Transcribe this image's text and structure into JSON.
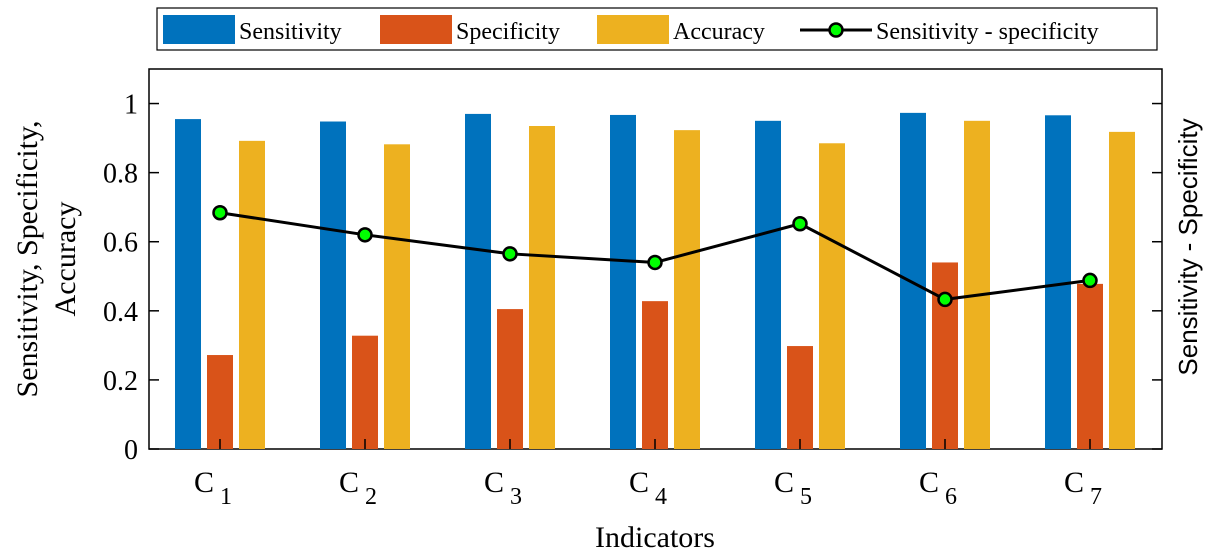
{
  "chart_data": {
    "type": "bar",
    "categories": [
      {
        "base": "C",
        "sub": "1"
      },
      {
        "base": "C",
        "sub": "2"
      },
      {
        "base": "C",
        "sub": "3"
      },
      {
        "base": "C",
        "sub": "4"
      },
      {
        "base": "C",
        "sub": "5"
      },
      {
        "base": "C",
        "sub": "6"
      },
      {
        "base": "C",
        "sub": "7"
      }
    ],
    "series": [
      {
        "name": "Sensitivity",
        "type": "bar",
        "color": "#0072BD",
        "values": [
          0.955,
          0.948,
          0.97,
          0.967,
          0.95,
          0.973,
          0.966
        ]
      },
      {
        "name": "Specificity",
        "type": "bar",
        "color": "#D95319",
        "values": [
          0.272,
          0.328,
          0.405,
          0.428,
          0.298,
          0.54,
          0.478
        ]
      },
      {
        "name": "Accuracy",
        "type": "bar",
        "color": "#EDB120",
        "values": [
          0.892,
          0.882,
          0.935,
          0.923,
          0.885,
          0.95,
          0.918
        ]
      },
      {
        "name": "Sensitivity - specificity",
        "type": "line",
        "color": "#000000",
        "marker_color": "#00FF00",
        "values": [
          0.684,
          0.62,
          0.565,
          0.54,
          0.652,
          0.433,
          0.488
        ]
      }
    ],
    "xlabel": "Indicators",
    "ylabel_lines": [
      "Sensitivity, Specificity,",
      "Accuracy"
    ],
    "y2label": "Sensitivity - Specificity",
    "ylim": [
      0,
      1.1
    ],
    "yticks": [
      0,
      0.2,
      0.4,
      0.6,
      0.8,
      1
    ],
    "ytick_labels": [
      "0",
      "0.2",
      "0.4",
      "0.6",
      "0.8",
      "1"
    ],
    "legend_position": "top",
    "grid": false
  }
}
